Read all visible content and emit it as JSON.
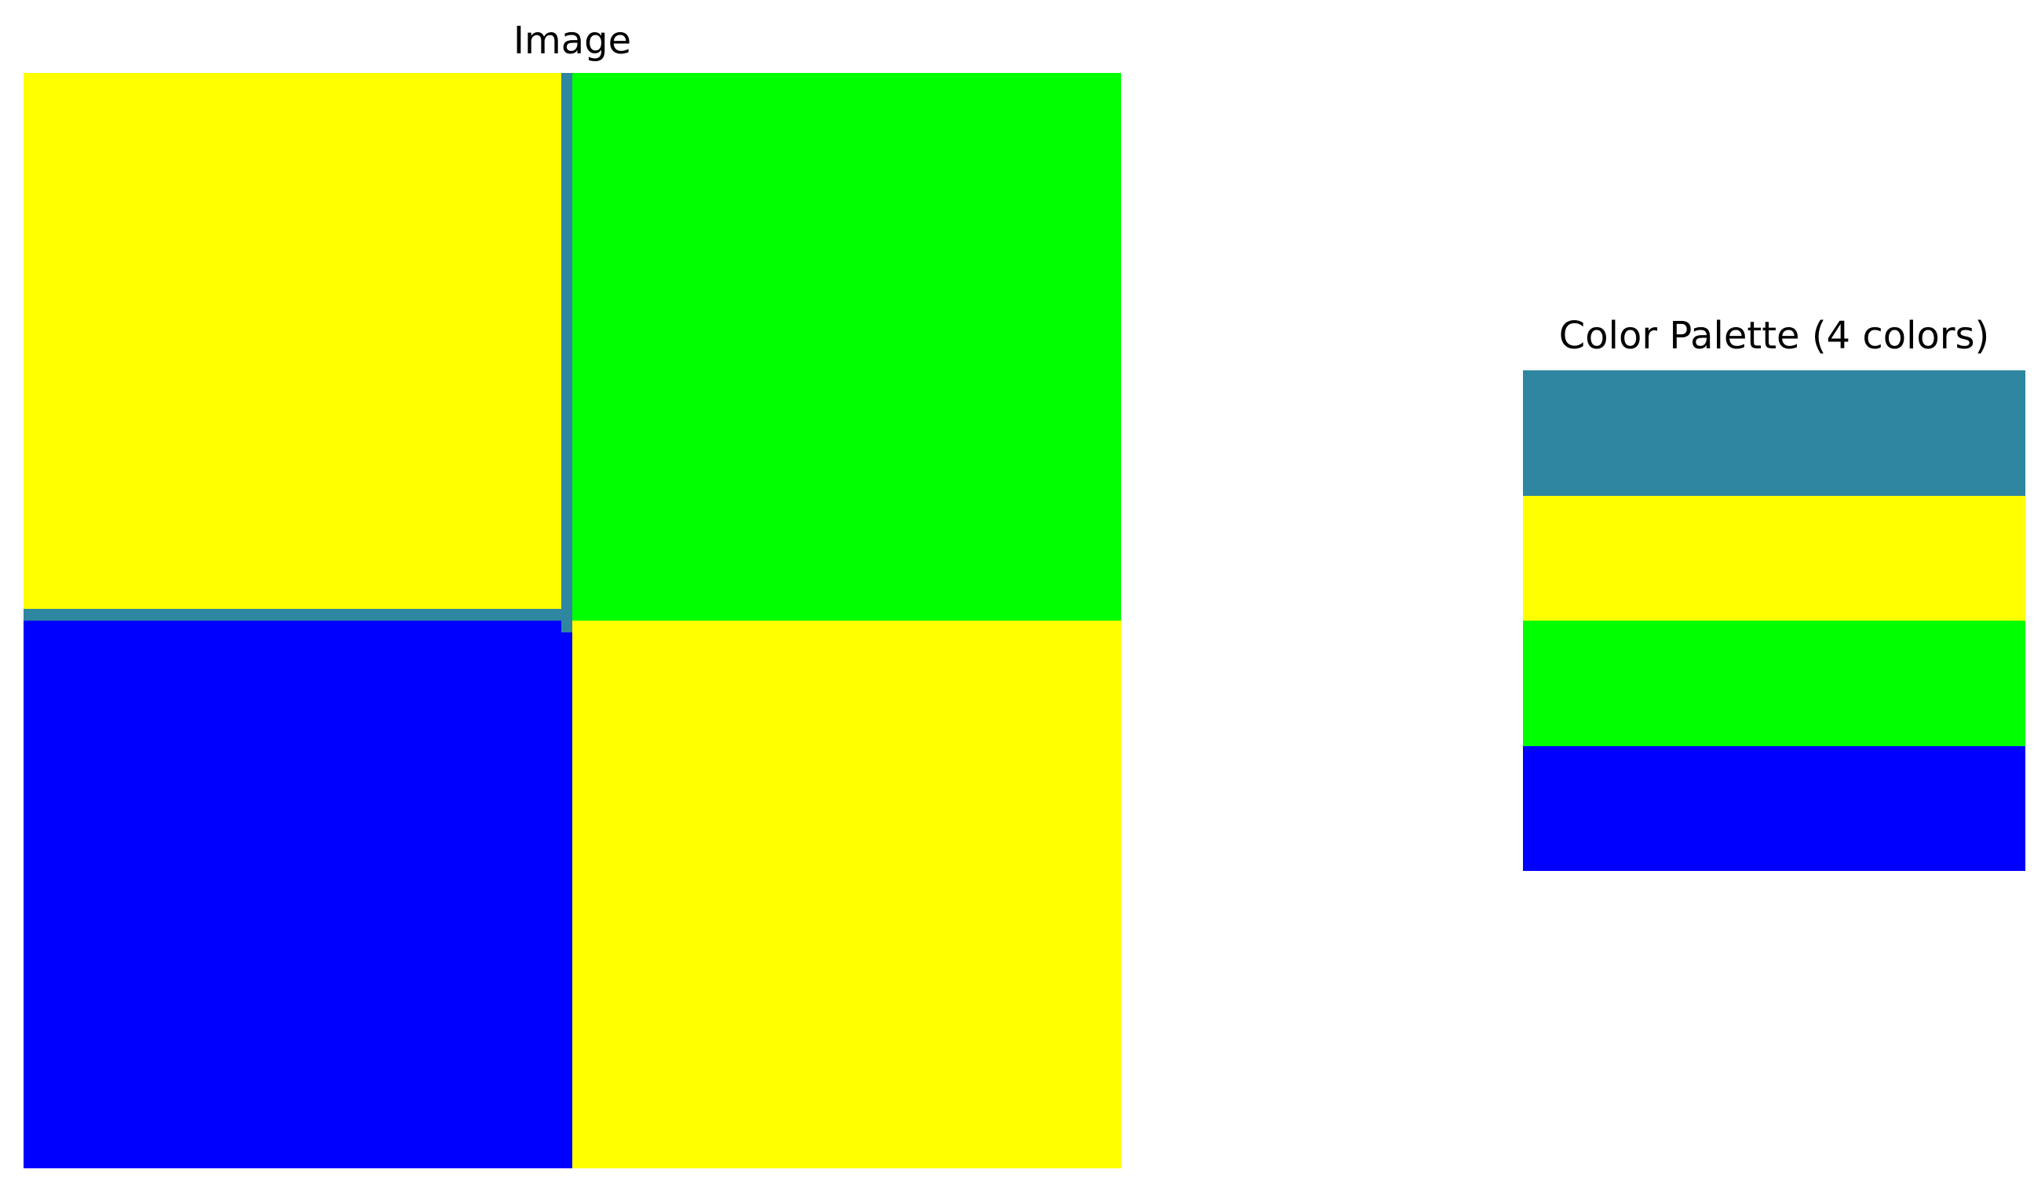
{
  "image_panel": {
    "title": "Image",
    "quadrants": {
      "top_left": "#ffff00",
      "top_right": "#00ff00",
      "bottom_left": "#0000ff",
      "bottom_right": "#ffff00"
    },
    "border_color": "#2e86a0"
  },
  "palette_panel": {
    "title": "Color Palette (4 colors)",
    "colors": [
      "#2e86a0",
      "#ffff00",
      "#00ff00",
      "#0000ff"
    ]
  }
}
